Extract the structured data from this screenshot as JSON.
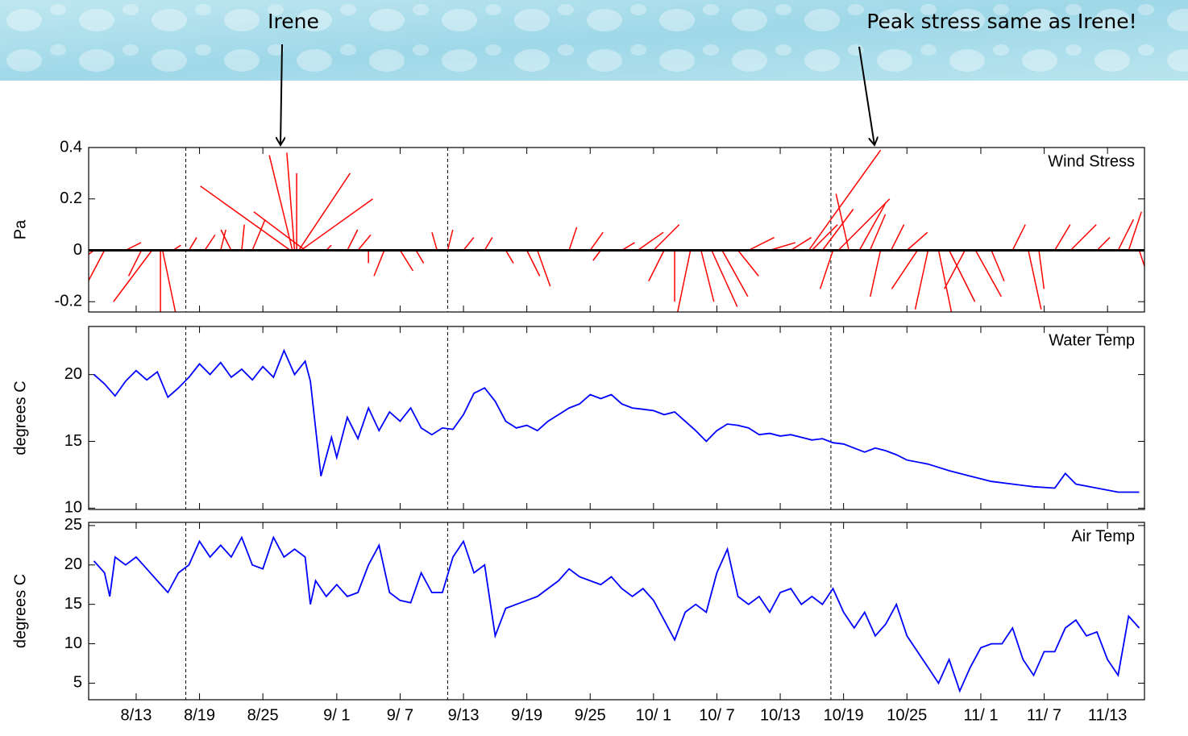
{
  "annotations": [
    {
      "text": "Irene"
    },
    {
      "text": "Peak stress same as Irene!"
    }
  ],
  "chart_data": [
    {
      "type": "stick",
      "title": "Wind Stress",
      "ylabel": "Pa",
      "color": "#ff0000",
      "xlim": [
        220.5,
        320.5
      ],
      "ylim": [
        -0.24,
        0.4
      ],
      "yticks": [
        -0.2,
        0,
        0.2,
        0.4
      ],
      "vlines": [
        229.7,
        254.5,
        290.8
      ],
      "x": [
        221,
        222,
        224,
        225.5,
        226.5,
        227.3,
        227.5,
        228.5,
        230,
        231.5,
        233,
        234,
        235,
        236,
        239.6,
        239.8,
        240,
        240.2,
        240.4,
        240.6,
        241,
        243,
        245,
        246,
        247,
        248.5,
        250,
        251.5,
        253.5,
        254.5,
        256,
        258,
        260,
        262,
        263,
        266,
        268,
        269,
        271,
        272.5,
        274,
        275,
        276,
        277.5,
        278.5,
        279.5,
        280.5,
        282,
        283,
        285,
        287,
        288.7,
        289,
        290,
        291,
        291.5,
        292.5,
        293.5,
        294.5,
        295.5,
        296.5,
        298,
        299,
        300,
        301,
        302,
        303.5,
        304.5,
        306,
        308,
        309.5,
        310.5,
        312,
        313.5,
        316,
        318,
        319,
        320
      ],
      "u": [
        -0.04,
        -0.1,
        0.06,
        -0.05,
        -0.15,
        0.0,
        0.05,
        0.03,
        0.03,
        0.04,
        0.02,
        -0.04,
        0.01,
        0.05,
        -0.35,
        -0.09,
        -0.03,
        0.0,
        0.2,
        0.28,
        -0.2,
        0.02,
        0.04,
        0.05,
        0.0,
        -0.04,
        0.05,
        0.03,
        -0.02,
        0.02,
        0.04,
        0.03,
        0.03,
        0.05,
        0.05,
        0.03,
        0.05,
        -0.03,
        0.05,
        0.1,
        0.1,
        -0.06,
        0.0,
        -0.05,
        0.05,
        0.1,
        0.1,
        0.08,
        0.1,
        0.1,
        0.08,
        0.28,
        0.1,
        0.12,
        -0.05,
        0.2,
        -0.05,
        0.1,
        0.06,
        -0.04,
        0.05,
        0.08,
        -0.1,
        -0.05,
        0.05,
        0.1,
        -0.08,
        0.1,
        0.05,
        0.05,
        0.05,
        0.02,
        0.06,
        0.1,
        0.05,
        0.06,
        0.05,
        0.05
      ],
      "v": [
        -0.03,
        -0.19,
        0.03,
        -0.1,
        -0.2,
        -0.24,
        -0.24,
        0.02,
        0.05,
        0.06,
        0.08,
        0.08,
        0.1,
        0.12,
        0.25,
        0.37,
        0.38,
        0.3,
        0.3,
        0.2,
        0.15,
        0.02,
        0.08,
        0.06,
        -0.05,
        -0.1,
        -0.08,
        -0.05,
        0.07,
        0.08,
        0.05,
        0.05,
        -0.05,
        -0.1,
        -0.14,
        0.09,
        0.07,
        -0.04,
        0.03,
        0.07,
        0.1,
        -0.12,
        -0.2,
        -0.24,
        -0.2,
        -0.22,
        -0.18,
        -0.1,
        0.05,
        0.03,
        0.05,
        0.39,
        0.1,
        0.16,
        -0.15,
        0.2,
        0.22,
        0.18,
        0.14,
        -0.18,
        0.1,
        0.07,
        -0.15,
        -0.23,
        -0.24,
        -0.2,
        -0.15,
        -0.18,
        -0.12,
        0.1,
        -0.23,
        -0.15,
        0.1,
        0.1,
        0.05,
        0.12,
        0.15,
        -0.15
      ]
    },
    {
      "type": "line",
      "title": "Water Temp",
      "ylabel": "degrees C",
      "color": "#0000ff",
      "xlim": [
        220.5,
        320.5
      ],
      "ylim": [
        9.9,
        23.6
      ],
      "yticks": [
        10,
        15,
        20
      ],
      "vlines": [
        229.7,
        254.5,
        290.8
      ],
      "x": [
        221,
        222,
        223,
        224,
        225,
        226,
        227,
        228,
        229,
        230,
        231,
        232,
        233,
        234,
        235,
        236,
        237,
        238,
        239,
        240,
        241,
        241.5,
        242.5,
        243.5,
        244,
        245,
        246,
        247,
        248,
        249,
        250,
        251,
        252,
        253,
        254,
        255,
        256,
        257,
        258,
        259,
        260,
        261,
        262,
        263,
        264,
        265,
        266,
        267,
        268,
        269,
        270,
        271,
        272,
        273,
        274,
        275,
        276,
        277,
        278,
        279,
        280,
        281,
        282,
        283,
        284,
        285,
        286,
        287,
        288,
        289,
        290,
        291,
        292,
        293,
        294,
        295,
        296,
        297,
        298,
        300,
        302,
        304,
        306,
        308,
        310,
        312,
        313,
        314,
        316,
        318,
        320
      ],
      "values": [
        20,
        19.3,
        18.4,
        19.5,
        20.3,
        19.6,
        20.2,
        18.3,
        19,
        19.8,
        20.8,
        20,
        20.9,
        19.8,
        20.4,
        19.6,
        20.6,
        19.8,
        21.8,
        20,
        21,
        19.5,
        12.4,
        15.3,
        13.8,
        16.8,
        15.2,
        17.5,
        15.8,
        17.2,
        16.5,
        17.5,
        16,
        15.5,
        16,
        15.9,
        17,
        18.6,
        19,
        18,
        16.5,
        16,
        16.2,
        15.8,
        16.5,
        17,
        17.5,
        17.8,
        18.5,
        18.2,
        18.5,
        17.8,
        17.5,
        17.4,
        17.3,
        17,
        17.2,
        16.5,
        15.8,
        15,
        15.8,
        16.3,
        16.2,
        16,
        15.5,
        15.6,
        15.4,
        15.5,
        15.3,
        15.1,
        15.2,
        14.9,
        14.8,
        14.5,
        14.2,
        14.5,
        14.3,
        14,
        13.6,
        13.3,
        12.8,
        12.4,
        12,
        11.8,
        11.6,
        11.5,
        12.6,
        11.8,
        11.5,
        11.2,
        11.2
      ]
    },
    {
      "type": "line",
      "title": "Air Temp",
      "ylabel": "degrees C",
      "color": "#0000ff",
      "xlim": [
        220.5,
        320.5
      ],
      "ylim": [
        2.9,
        25.4
      ],
      "yticks": [
        5,
        10,
        15,
        20,
        25
      ],
      "vlines": [
        229.7,
        254.5,
        290.8
      ],
      "xticks": [
        {
          "value": 225,
          "label": "8/13"
        },
        {
          "value": 231,
          "label": "8/19"
        },
        {
          "value": 237,
          "label": "8/25"
        },
        {
          "value": 244,
          "label": "9/ 1"
        },
        {
          "value": 250,
          "label": "9/ 7"
        },
        {
          "value": 256,
          "label": "9/13"
        },
        {
          "value": 262,
          "label": "9/19"
        },
        {
          "value": 268,
          "label": "9/25"
        },
        {
          "value": 274,
          "label": "10/ 1"
        },
        {
          "value": 280,
          "label": "10/ 7"
        },
        {
          "value": 286,
          "label": "10/13"
        },
        {
          "value": 292,
          "label": "10/19"
        },
        {
          "value": 298,
          "label": "10/25"
        },
        {
          "value": 305,
          "label": "11/ 1"
        },
        {
          "value": 311,
          "label": "11/ 7"
        },
        {
          "value": 317,
          "label": "11/13"
        }
      ],
      "x": [
        221,
        222,
        222.5,
        223,
        224,
        225,
        226,
        227,
        228,
        229,
        230,
        231,
        232,
        233,
        234,
        235,
        236,
        237,
        238,
        239,
        240,
        241,
        241.5,
        242,
        243,
        244,
        245,
        246,
        247,
        248,
        249,
        250,
        251,
        252,
        253,
        254,
        255,
        256,
        257,
        258,
        259,
        260,
        261,
        262,
        263,
        264,
        265,
        266,
        267,
        268,
        269,
        270,
        271,
        272,
        273,
        274,
        275,
        276,
        277,
        278,
        279,
        280,
        281,
        282,
        283,
        284,
        285,
        286,
        287,
        288,
        289,
        290,
        291,
        292,
        293,
        294,
        295,
        296,
        297,
        298,
        299,
        300,
        301,
        302,
        303,
        304,
        305,
        306,
        307,
        308,
        309,
        310,
        311,
        312,
        313,
        314,
        315,
        316,
        317,
        318,
        319,
        320
      ],
      "values": [
        20.5,
        19,
        16,
        21,
        20,
        21,
        19.5,
        18,
        16.5,
        19,
        20,
        23,
        21,
        22.5,
        21,
        23.5,
        20,
        19.5,
        23.5,
        21,
        22,
        21,
        15,
        18,
        16,
        17.5,
        16,
        16.5,
        20,
        22.5,
        16.5,
        15.5,
        15.2,
        19,
        16.5,
        16.5,
        21,
        23,
        19,
        20,
        11,
        14.5,
        15,
        15.5,
        16,
        17,
        18,
        19.5,
        18.5,
        18,
        17.5,
        18.5,
        17,
        16,
        17,
        15.5,
        13,
        10.5,
        14,
        15,
        14,
        19,
        22,
        16,
        15,
        16,
        14,
        16.5,
        17,
        15,
        16,
        15,
        17,
        14,
        12,
        14,
        11,
        12.5,
        15,
        11,
        9,
        7,
        5,
        8,
        4,
        7,
        9.5,
        10,
        10,
        12,
        8,
        6,
        9,
        9,
        12,
        13,
        11,
        11.5,
        8,
        6,
        13.5,
        12
      ]
    }
  ]
}
